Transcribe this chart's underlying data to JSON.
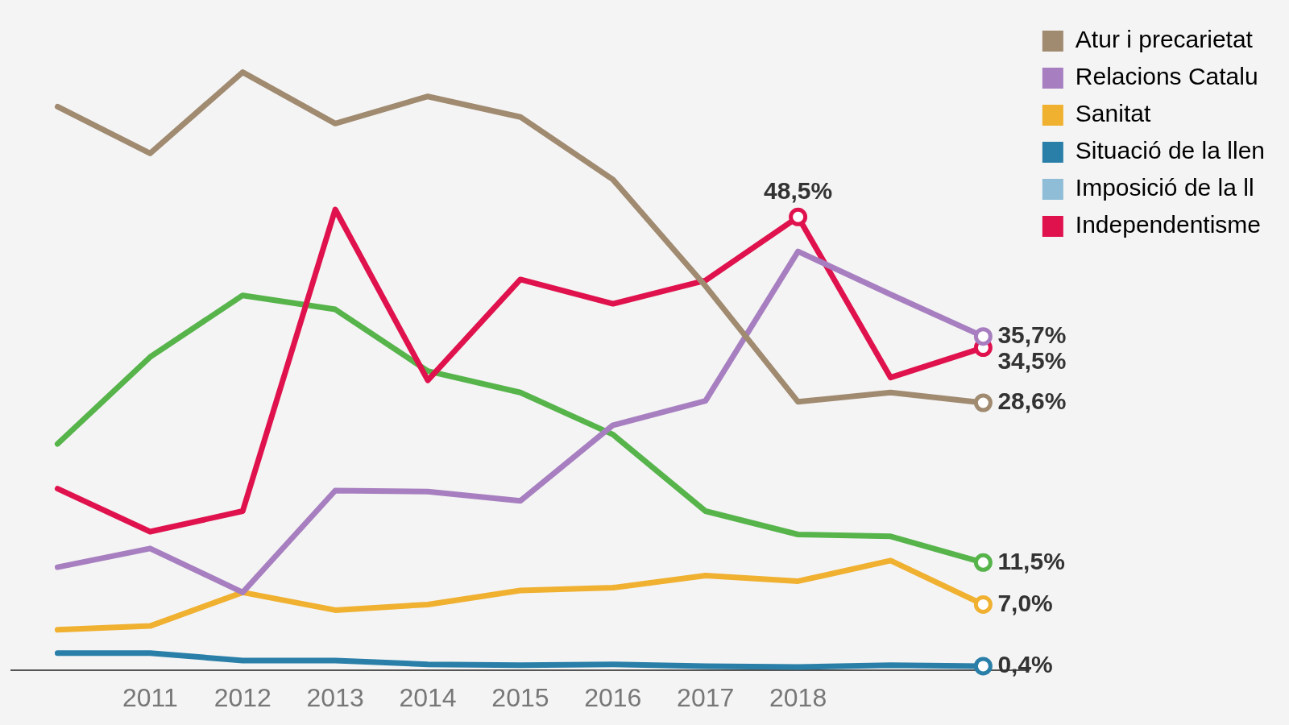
{
  "chart_data": {
    "type": "line",
    "categories": [
      null,
      "2011",
      "2012",
      "2013",
      "2014",
      "2015",
      "2016",
      "2017",
      "2018",
      null,
      null
    ],
    "tick_labels": "x",
    "grid": false,
    "legend": "top right",
    "marker": "none",
    "line_style": "solid",
    "series": [
      {
        "name": "Atur i precarietat",
        "color": "#a08a70",
        "values": [
          60.3,
          55.3,
          64,
          58.5,
          61.4,
          59.2,
          52.5,
          41.1,
          28.7,
          29.7,
          28.6
        ],
        "value_labels": [
          null,
          null,
          null,
          null,
          null,
          null,
          null,
          null,
          null,
          null,
          "28,6%"
        ]
      },
      {
        "name": "Relacions Catalu",
        "color": "#a77fc0",
        "values": [
          11.0,
          13.0,
          8.3,
          19.2,
          19.1,
          18.1,
          26.2,
          28.8,
          44.8,
          40.2,
          35.7
        ],
        "value_labels": [
          null,
          null,
          null,
          null,
          null,
          null,
          null,
          null,
          null,
          null,
          "35,7%"
        ]
      },
      {
        "name": "Sanitat",
        "color": "#f0b030",
        "values": [
          4.3,
          4.7,
          8.3,
          6.4,
          7.0,
          8.5,
          8.8,
          10.1,
          9.5,
          11.7,
          7.0
        ],
        "value_labels": [
          null,
          null,
          null,
          null,
          null,
          null,
          null,
          null,
          null,
          null,
          "7,0%"
        ]
      },
      {
        "name": "Situació de la llen",
        "color": "#2a7fa8",
        "values": [
          1.8,
          1.8,
          1.0,
          1.0,
          0.6,
          0.5,
          0.6,
          0.4,
          0.3,
          0.5,
          0.4
        ],
        "value_labels": [
          null,
          null,
          null,
          null,
          null,
          null,
          null,
          null,
          null,
          null,
          "0,4%"
        ]
      },
      {
        "name": "Imposició de la ll",
        "color": "#8fbcd6",
        "values": [
          null,
          null,
          null,
          null,
          null,
          null,
          null,
          null,
          null,
          null,
          null
        ]
      },
      {
        "name": "Independentisme",
        "color": "#e0124e",
        "values": [
          19.4,
          14.8,
          17.0,
          49.3,
          31.0,
          41.8,
          39.2,
          41.7,
          48.5,
          31.3,
          34.5
        ],
        "value_labels": [
          null,
          null,
          null,
          null,
          null,
          null,
          null,
          null,
          "48,5%",
          null,
          "34,5%"
        ]
      },
      {
        "color": "#56b44b",
        "values": [
          24.2,
          33.5,
          40.1,
          38.6,
          32.0,
          29.7,
          25.2,
          17.0,
          14.5,
          14.3,
          11.5
        ],
        "value_labels": [
          null,
          null,
          null,
          null,
          null,
          null,
          null,
          null,
          null,
          null,
          "11,5%"
        ]
      }
    ]
  }
}
